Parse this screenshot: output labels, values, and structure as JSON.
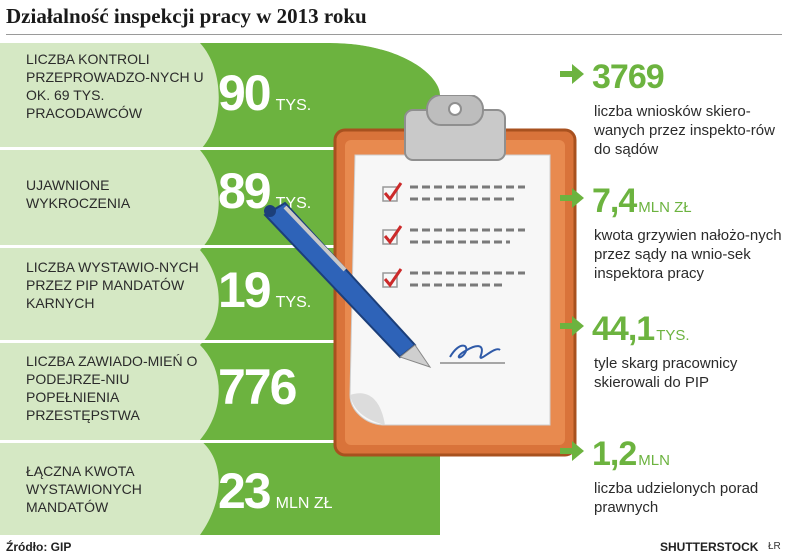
{
  "title": "Działalność inspekcji pracy w 2013 roku",
  "left_rows": [
    {
      "label": "LICZBA KONTROLI PRZEPROWADZO-NYCH U OK. 69 TYS. PRACODAWCÓW",
      "value": "90",
      "unit": "TYS."
    },
    {
      "label": "UJAWNIONE WYKROCZENIA",
      "value": "89",
      "unit": "TYS."
    },
    {
      "label": "LICZBA WYSTAWIO-NYCH PRZEZ PIP MANDATÓW KARNYCH",
      "value": "19",
      "unit": "TYS."
    },
    {
      "label": "LICZBA ZAWIADO-MIEŃ O PODEJRZE-NIU POPEŁNIENIA PRZESTĘPSTWA",
      "value": "776",
      "unit": ""
    },
    {
      "label": "ŁĄCZNA KWOTA WYSTAWIONYCH MANDATÓW",
      "value": "23",
      "unit": "MLN ZŁ"
    }
  ],
  "right_stats": [
    {
      "value": "3769",
      "unit": "",
      "text": "liczba wniosków skiero-wanych przez inspekto-rów do sądów"
    },
    {
      "value": "7,4",
      "unit": "MLN ZŁ",
      "text": "kwota grzywien nałożo-nych przez sądy na wnio-sek inspektora pracy"
    },
    {
      "value": "44,1",
      "unit": "TYS.",
      "text": "tyle skarg pracownicy skierowali do PIP"
    },
    {
      "value": "1,2",
      "unit": "MLN",
      "text": "liczba udzielonych porad prawnych"
    }
  ],
  "source": "Źródło: GIP",
  "credit": "SHUTTERSTOCK",
  "credit_mark": "ŁR",
  "colors": {
    "green_light": "#d5e8c4",
    "green_dark": "#6cb33f",
    "green_mid": "#a6cf86",
    "orange": "#d9733a"
  },
  "illustration": {
    "icons": [
      "clipboard-icon",
      "pen-icon",
      "checkmark-icon",
      "signature-icon"
    ]
  }
}
